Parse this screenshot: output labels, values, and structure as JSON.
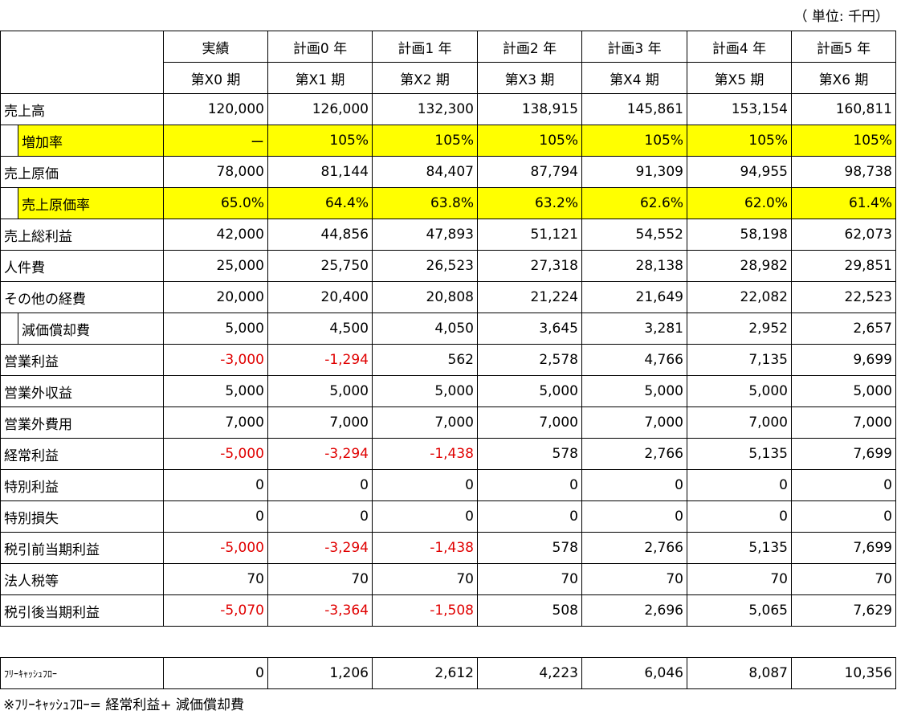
{
  "unit": "（ 単位: 千円）",
  "header": {
    "row1": [
      "実績",
      "計画0 年",
      "計画1 年",
      "計画2 年",
      "計画3 年",
      "計画4 年",
      "計画5 年"
    ],
    "row2": [
      "第X0 期",
      "第X1 期",
      "第X2 期",
      "第X3 期",
      "第X4 期",
      "第X5 期",
      "第X6 期"
    ]
  },
  "rows": [
    {
      "label": "売上高",
      "cells": [
        "120,000",
        "126,000",
        "132,300",
        "138,915",
        "145,861",
        "153,154",
        "160,811"
      ]
    },
    {
      "label": "増加率",
      "cells": [
        "ー",
        "105%",
        "105%",
        "105%",
        "105%",
        "105%",
        "105%"
      ]
    },
    {
      "label": "売上原価",
      "cells": [
        "78,000",
        "81,144",
        "84,407",
        "87,794",
        "91,309",
        "94,955",
        "98,738"
      ]
    },
    {
      "label": "売上原価率",
      "cells": [
        "65.0%",
        "64.4%",
        "63.8%",
        "63.2%",
        "62.6%",
        "62.0%",
        "61.4%"
      ]
    },
    {
      "label": "売上総利益",
      "cells": [
        "42,000",
        "44,856",
        "47,893",
        "51,121",
        "54,552",
        "58,198",
        "62,073"
      ]
    },
    {
      "label": "人件費",
      "cells": [
        "25,000",
        "25,750",
        "26,523",
        "27,318",
        "28,138",
        "28,982",
        "29,851"
      ]
    },
    {
      "label": "その他の経費",
      "cells": [
        "20,000",
        "20,400",
        "20,808",
        "21,224",
        "21,649",
        "22,082",
        "22,523"
      ]
    },
    {
      "label": "減価償却費",
      "cells": [
        "5,000",
        "4,500",
        "4,050",
        "3,645",
        "3,281",
        "2,952",
        "2,657"
      ]
    },
    {
      "label": "営業利益",
      "cells": [
        "-3,000",
        "-1,294",
        "562",
        "2,578",
        "4,766",
        "7,135",
        "9,699"
      ]
    },
    {
      "label": "営業外収益",
      "cells": [
        "5,000",
        "5,000",
        "5,000",
        "5,000",
        "5,000",
        "5,000",
        "5,000"
      ]
    },
    {
      "label": "営業外費用",
      "cells": [
        "7,000",
        "7,000",
        "7,000",
        "7,000",
        "7,000",
        "7,000",
        "7,000"
      ]
    },
    {
      "label": "経常利益",
      "cells": [
        "-5,000",
        "-3,294",
        "-1,438",
        "578",
        "2,766",
        "5,135",
        "7,699"
      ]
    },
    {
      "label": "特別利益",
      "cells": [
        "0",
        "0",
        "0",
        "0",
        "0",
        "0",
        "0"
      ]
    },
    {
      "label": "特別損失",
      "cells": [
        "0",
        "0",
        "0",
        "0",
        "0",
        "0",
        "0"
      ]
    },
    {
      "label": "税引前当期利益",
      "cells": [
        "-5,000",
        "-3,294",
        "-1,438",
        "578",
        "2,766",
        "5,135",
        "7,699"
      ]
    },
    {
      "label": "法人税等",
      "cells": [
        "70",
        "70",
        "70",
        "70",
        "70",
        "70",
        "70"
      ]
    },
    {
      "label": "税引後当期利益",
      "cells": [
        "-5,070",
        "-3,364",
        "-1,508",
        "508",
        "2,696",
        "5,065",
        "7,629"
      ]
    }
  ],
  "fcf": {
    "label": "ﾌﾘｰｷｬｯｼｭﾌﾛｰ",
    "cells": [
      "0",
      "1,206",
      "2,612",
      "4,223",
      "6,046",
      "8,087",
      "10,356"
    ]
  },
  "note": "※ﾌﾘｰｷｬｯｼｭﾌﾛｰ= 経常利益+ 減価償却費"
}
